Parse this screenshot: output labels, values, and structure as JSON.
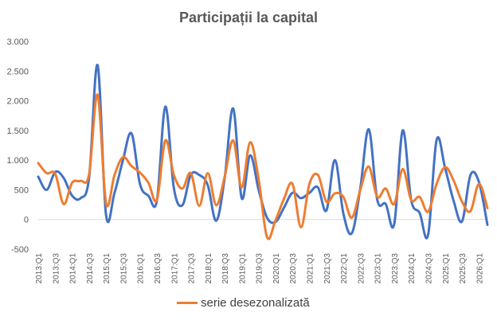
{
  "chart_data": {
    "type": "line",
    "title": "Participații la capital",
    "xlabel": "",
    "ylabel": "",
    "ylim": [
      -500,
      3000
    ],
    "yticks": [
      -500,
      0,
      500,
      1000,
      1500,
      2000,
      2500,
      3000
    ],
    "ytick_labels": [
      "-500",
      "0",
      "500",
      "1.000",
      "1.500",
      "2.000",
      "2.500",
      "3.000"
    ],
    "x": [
      "2013:Q1",
      "2013:Q2",
      "2013:Q3",
      "2013:Q4",
      "2014:Q1",
      "2014:Q2",
      "2014:Q3",
      "2014:Q4",
      "2015:Q1",
      "2015:Q2",
      "2015:Q3",
      "2015:Q4",
      "2016:Q1",
      "2016:Q2",
      "2016:Q3",
      "2016:Q4",
      "2017:Q1",
      "2017:Q2",
      "2017:Q3",
      "2017:Q4",
      "2018:Q1",
      "2018:Q2",
      "2018:Q3",
      "2018:Q4",
      "2019:Q1",
      "2019:Q2",
      "2019:Q3",
      "2019:Q4",
      "2020:Q1",
      "2020:Q2",
      "2020:Q3",
      "2020:Q4",
      "2021:Q1",
      "2021:Q2",
      "2021:Q3",
      "2021:Q4",
      "2022:Q1",
      "2022:Q2",
      "2022:Q3",
      "2022:Q4",
      "2023:Q1",
      "2023:Q2",
      "2023:Q3",
      "2023:Q4",
      "2024:Q1",
      "2024:Q2",
      "2024:Q3",
      "2024:Q4",
      "2025:Q1",
      "2025:Q2",
      "2025:Q3",
      "2025:Q4",
      "2026:Q1",
      "2026:Q2"
    ],
    "xtick_labels": [
      "2013:Q1",
      "2013:Q3",
      "2014:Q1",
      "2014:Q3",
      "2015:Q1",
      "2015:Q3",
      "2016:Q1",
      "2016:Q3",
      "2017:Q1",
      "2017:Q3",
      "2018:Q1",
      "2018:Q3",
      "2019:Q1",
      "2019:Q3",
      "2020:Q1",
      "2020:Q3",
      "2021:Q1",
      "2021:Q3",
      "2022:Q1",
      "2022:Q3",
      "2023:Q1",
      "2023:Q3",
      "2024:Q1",
      "2024:Q3",
      "2025:Q1",
      "2025:Q3",
      "2026:Q1"
    ],
    "grid": false,
    "legend_position": "bottom",
    "series": [
      {
        "name": "",
        "color": "#4472C4",
        "values": [
          720,
          500,
          800,
          700,
          400,
          360,
          700,
          2600,
          80,
          450,
          1000,
          1450,
          600,
          400,
          320,
          1900,
          530,
          240,
          750,
          750,
          580,
          -20,
          700,
          1870,
          360,
          1080,
          500,
          30,
          -40,
          200,
          450,
          360,
          450,
          540,
          150,
          1000,
          100,
          -230,
          530,
          1520,
          330,
          260,
          -80,
          1500,
          330,
          110,
          -260,
          1340,
          870,
          320,
          -30,
          750,
          630,
          -90
        ]
      },
      {
        "name": "serie desezonalizată",
        "color": "#ED7D31",
        "values": [
          950,
          780,
          770,
          260,
          620,
          650,
          760,
          2100,
          280,
          750,
          1050,
          900,
          790,
          620,
          330,
          1330,
          750,
          520,
          780,
          230,
          780,
          240,
          720,
          1330,
          540,
          1300,
          680,
          -300,
          -10,
          350,
          600,
          -130,
          600,
          750,
          300,
          440,
          380,
          30,
          500,
          890,
          380,
          520,
          260,
          850,
          330,
          380,
          130,
          600,
          880,
          660,
          300,
          140,
          600,
          190
        ]
      }
    ]
  }
}
